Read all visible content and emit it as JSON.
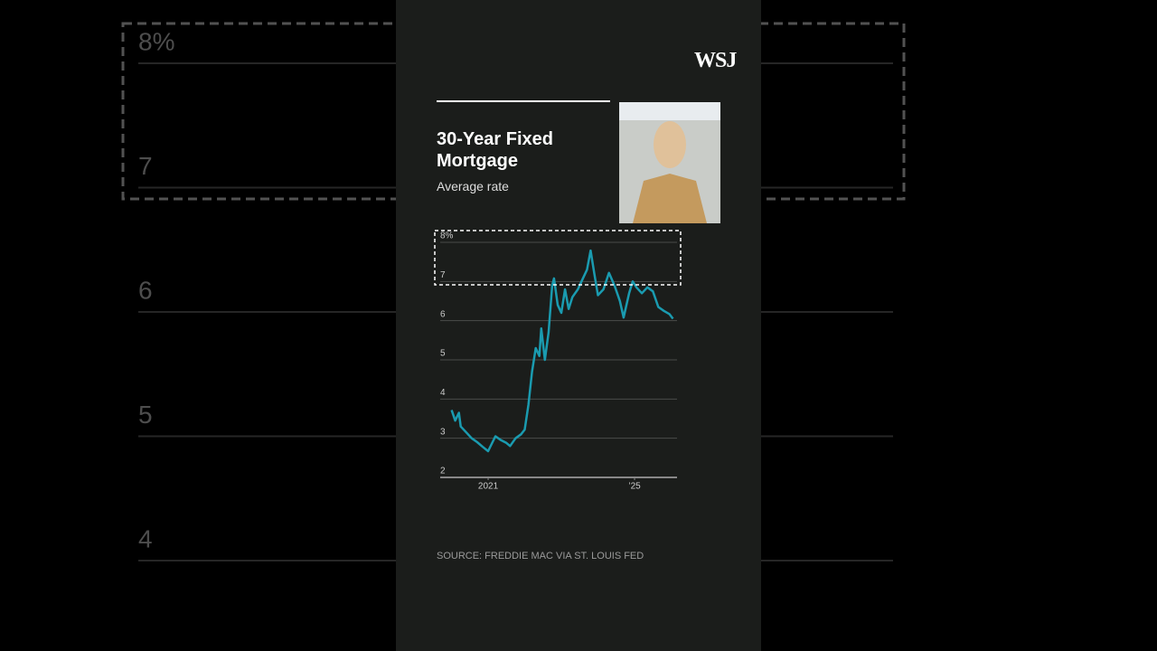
{
  "chart_data": {
    "type": "line",
    "brand": "WSJ",
    "title": "30-Year Fixed Mortgage",
    "subtitle": "Average rate",
    "source": "SOURCE: FREDDIE MAC VIA ST. LOUIS FED",
    "x": [
      2020.0,
      2020.1,
      2020.2,
      2020.25,
      2020.4,
      2020.55,
      2020.7,
      2020.85,
      2021.0,
      2021.2,
      2021.35,
      2021.5,
      2021.6,
      2021.75,
      2021.9,
      2022.0,
      2022.1,
      2022.2,
      2022.3,
      2022.4,
      2022.45,
      2022.55,
      2022.65,
      2022.75,
      2022.8,
      2022.9,
      2023.0,
      2023.1,
      2023.2,
      2023.3,
      2023.45,
      2023.55,
      2023.7,
      2023.8,
      2023.9,
      2024.0,
      2024.15,
      2024.3,
      2024.45,
      2024.6,
      2024.7,
      2024.85,
      2024.95,
      2025.05,
      2025.2,
      2025.35,
      2025.5,
      2025.65,
      2025.8,
      2025.95,
      2026.05
    ],
    "series": [
      {
        "name": "30-Year Fixed Mortgage",
        "color": "#1a9bb0",
        "values": [
          3.72,
          3.45,
          3.65,
          3.3,
          3.15,
          3.0,
          2.9,
          2.78,
          2.67,
          3.05,
          2.95,
          2.88,
          2.8,
          3.0,
          3.1,
          3.22,
          3.85,
          4.7,
          5.3,
          5.1,
          5.8,
          5.0,
          5.7,
          6.9,
          7.08,
          6.4,
          6.2,
          6.8,
          6.3,
          6.6,
          6.8,
          7.0,
          7.3,
          7.79,
          7.2,
          6.65,
          6.8,
          7.22,
          6.9,
          6.5,
          6.08,
          6.7,
          7.0,
          6.85,
          6.7,
          6.85,
          6.75,
          6.35,
          6.25,
          6.17,
          6.05
        ]
      }
    ],
    "xlim": [
      2019.69,
      2026.16
    ],
    "xticks": [
      2021,
      {
        "value": 2025,
        "label": "’25"
      }
    ],
    "ylim": [
      2,
      8
    ],
    "yticks": [
      {
        "value": 8,
        "label": "8%"
      },
      7,
      6,
      5,
      4,
      3,
      2
    ],
    "grid": true
  }
}
